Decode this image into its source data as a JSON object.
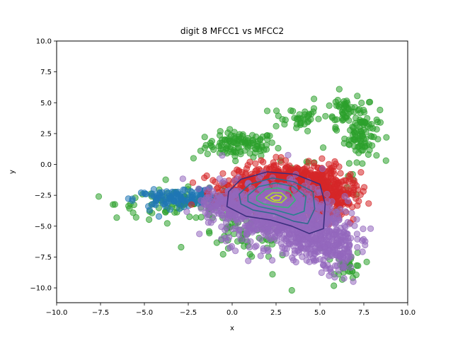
{
  "chart_data": {
    "type": "scatter",
    "title": "digit 8 MFCC1 vs MFCC2",
    "xlabel": "x",
    "ylabel": "y",
    "xlim": [
      -10,
      10
    ],
    "ylim": [
      -11.2,
      10
    ],
    "xticks": [
      -10,
      -7.5,
      -5,
      -2.5,
      0,
      2.5,
      5,
      7.5,
      10
    ],
    "yticks": [
      -10,
      -7.5,
      -5,
      -2.5,
      0,
      2.5,
      5,
      7.5,
      10
    ],
    "xtick_labels": [
      "−10.0",
      "−7.5",
      "−5.0",
      "−2.5",
      "0.0",
      "2.5",
      "5.0",
      "7.5",
      "10.0"
    ],
    "ytick_labels": [
      "−10.0",
      "−7.5",
      "−5.0",
      "−2.5",
      "0.0",
      "2.5",
      "5.0",
      "7.5",
      "10.0"
    ],
    "grid": false,
    "point_alpha": 0.55,
    "series": [
      {
        "color": "#2ca02c",
        "clusters": [
          {
            "cx": 0.5,
            "cy": 1.6,
            "sx": 1.0,
            "sy": 0.5,
            "n": 110
          },
          {
            "cx": 3.6,
            "cy": 3.8,
            "sx": 0.7,
            "sy": 0.5,
            "n": 35
          },
          {
            "cx": 6.4,
            "cy": 4.5,
            "sx": 0.5,
            "sy": 0.7,
            "n": 45
          },
          {
            "cx": 7.4,
            "cy": 2.5,
            "sx": 0.5,
            "sy": 1.1,
            "n": 95
          },
          {
            "cx": -3.0,
            "cy": -3.2,
            "sx": 1.8,
            "sy": 0.6,
            "n": 85
          },
          {
            "cx": 0.8,
            "cy": -5.8,
            "sx": 1.4,
            "sy": 1.0,
            "n": 70
          },
          {
            "cx": 6.7,
            "cy": -8.3,
            "sx": 0.4,
            "sy": 0.6,
            "n": 30
          },
          {
            "cx": 4.0,
            "cy": -1.5,
            "sx": 2.0,
            "sy": 1.2,
            "n": 40
          }
        ],
        "points": [
          [
            -7.6,
            -2.6
          ],
          [
            3.4,
            -10.2
          ],
          [
            2.3,
            -8.9
          ],
          [
            -5.8,
            -3.2
          ],
          [
            -1.8,
            1.1
          ],
          [
            -2.2,
            0.5
          ],
          [
            6.1,
            6.1
          ],
          [
            5.0,
            -6.8
          ],
          [
            4.3,
            2.7
          ],
          [
            -0.7,
            -2.5
          ]
        ]
      },
      {
        "color": "#1f77b4",
        "clusters": [
          {
            "cx": -3.6,
            "cy": -2.8,
            "sx": 1.0,
            "sy": 0.35,
            "n": 90
          },
          {
            "cx": -1.6,
            "cy": -2.5,
            "sx": 0.7,
            "sy": 0.4,
            "n": 40
          }
        ],
        "points": [
          [
            -4.7,
            -3.7
          ],
          [
            -5.0,
            -2.3
          ]
        ]
      },
      {
        "color": "#d62728",
        "clusters": [
          {
            "cx": 3.4,
            "cy": -1.6,
            "sx": 1.5,
            "sy": 0.8,
            "n": 650
          },
          {
            "cx": 5.4,
            "cy": -2.8,
            "sx": 0.8,
            "sy": 0.9,
            "n": 200
          },
          {
            "cx": 1.0,
            "cy": -2.2,
            "sx": 1.0,
            "sy": 0.7,
            "n": 160
          }
        ],
        "points": [
          [
            2.5,
            0.6
          ],
          [
            5.6,
            -0.3
          ],
          [
            0.6,
            -1.0
          ]
        ]
      },
      {
        "color": "#9467bd",
        "clusters": [
          {
            "cx": 2.6,
            "cy": -3.9,
            "sx": 1.6,
            "sy": 1.3,
            "n": 750
          },
          {
            "cx": 5.0,
            "cy": -6.0,
            "sx": 1.0,
            "sy": 0.9,
            "n": 260
          },
          {
            "cx": -0.3,
            "cy": -3.3,
            "sx": 0.8,
            "sy": 0.6,
            "n": 120
          },
          {
            "cx": 6.2,
            "cy": -7.6,
            "sx": 0.5,
            "sy": 0.6,
            "n": 50
          }
        ],
        "points": [
          [
            6.9,
            -9.5
          ],
          [
            4.4,
            -7.9
          ]
        ]
      }
    ],
    "contours": [
      {
        "color": "#3b2e7e",
        "points": [
          [
            -0.2,
            -2.2
          ],
          [
            0.5,
            -1.2
          ],
          [
            2.0,
            -0.6
          ],
          [
            3.6,
            -0.8
          ],
          [
            5.0,
            -1.6
          ],
          [
            5.3,
            -3.2
          ],
          [
            5.2,
            -5.2
          ],
          [
            4.4,
            -5.6
          ],
          [
            3.4,
            -5.0
          ],
          [
            2.2,
            -4.5
          ],
          [
            0.8,
            -4.2
          ],
          [
            -0.3,
            -3.4
          ]
        ]
      },
      {
        "color": "#31688e",
        "points": [
          [
            0.4,
            -2.4
          ],
          [
            1.0,
            -1.6
          ],
          [
            2.3,
            -1.1
          ],
          [
            3.5,
            -1.4
          ],
          [
            4.6,
            -2.2
          ],
          [
            4.7,
            -3.6
          ],
          [
            4.3,
            -4.8
          ],
          [
            3.5,
            -4.6
          ],
          [
            2.4,
            -4.0
          ],
          [
            1.2,
            -3.7
          ],
          [
            0.5,
            -3.2
          ]
        ]
      },
      {
        "color": "#26828e",
        "points": [
          [
            0.9,
            -2.5
          ],
          [
            1.5,
            -1.8
          ],
          [
            2.5,
            -1.5
          ],
          [
            3.5,
            -1.8
          ],
          [
            4.2,
            -2.6
          ],
          [
            4.1,
            -3.8
          ],
          [
            3.5,
            -4.1
          ],
          [
            2.5,
            -3.7
          ],
          [
            1.5,
            -3.4
          ],
          [
            0.9,
            -3.0
          ]
        ]
      },
      {
        "color": "#35b779",
        "points": [
          [
            1.4,
            -2.6
          ],
          [
            1.9,
            -2.0
          ],
          [
            2.6,
            -1.9
          ],
          [
            3.3,
            -2.2
          ],
          [
            3.6,
            -2.9
          ],
          [
            3.2,
            -3.5
          ],
          [
            2.5,
            -3.4
          ],
          [
            1.8,
            -3.2
          ],
          [
            1.4,
            -2.9
          ]
        ]
      },
      {
        "color": "#a8db34",
        "points": [
          [
            1.9,
            -2.7
          ],
          [
            2.3,
            -2.3
          ],
          [
            2.8,
            -2.3
          ],
          [
            3.1,
            -2.7
          ],
          [
            2.8,
            -3.1
          ],
          [
            2.3,
            -3.0
          ]
        ]
      },
      {
        "color": "#d4e21a",
        "points": [
          [
            2.2,
            -2.7
          ],
          [
            2.5,
            -2.5
          ],
          [
            2.8,
            -2.6
          ],
          [
            2.7,
            -2.9
          ],
          [
            2.4,
            -2.9
          ]
        ]
      }
    ]
  }
}
